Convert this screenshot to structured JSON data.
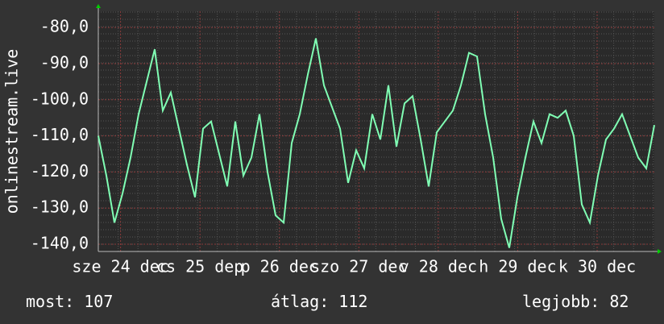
{
  "chart_data": {
    "type": "line",
    "y_label": "onlinestream.live",
    "color": "#80ffb4",
    "values": [
      -110,
      -121,
      -134,
      -126,
      -116,
      -104,
      -95,
      -86,
      -103,
      -98,
      -108,
      -118,
      -127,
      -108,
      -106,
      -115,
      -124,
      -106,
      -121,
      -116,
      -104,
      -120,
      -132,
      -134,
      -112,
      -104,
      -93,
      -83,
      -96,
      -102,
      -108,
      -123,
      -114,
      -119,
      -104,
      -111,
      -96,
      -113,
      -101,
      -99,
      -111,
      -124,
      -109,
      -106,
      -103,
      -96,
      -87,
      -88,
      -104,
      -116,
      -133,
      -141,
      -127,
      -116,
      -106,
      -112,
      -104,
      -105,
      -103,
      -110,
      -129,
      -134,
      -121,
      -111,
      -108,
      -104,
      -110,
      -116,
      -119,
      -107
    ],
    "xlim": [
      0,
      7
    ],
    "xticks": [
      {
        "value": 0.28,
        "label": "sze 24 dec"
      },
      {
        "value": 1.28,
        "label": "cs 25 dep"
      },
      {
        "value": 2.28,
        "label": "p 26 dec"
      },
      {
        "value": 3.28,
        "label": "szo 27 dec"
      },
      {
        "value": 4.28,
        "label": "v 28 dec"
      },
      {
        "value": 5.28,
        "label": "h 29 dec"
      },
      {
        "value": 6.28,
        "label": "k 30 dec"
      }
    ],
    "ylim": [
      -142,
      -75.5
    ],
    "yticks": [
      {
        "value": -140,
        "label": "-140,0"
      },
      {
        "value": -130,
        "label": "-130,0"
      },
      {
        "value": -120,
        "label": "-120,0"
      },
      {
        "value": -110,
        "label": "-110,0"
      },
      {
        "value": -100,
        "label": "-100,0"
      },
      {
        "value": -90,
        "label": "-90,0"
      },
      {
        "value": -80,
        "label": "-80,0"
      }
    ],
    "grid": true,
    "stats": [
      {
        "label": "most:",
        "value": 107
      },
      {
        "label": "átlag:",
        "value": 112
      },
      {
        "label": "legjobb:",
        "value": 82
      }
    ]
  }
}
